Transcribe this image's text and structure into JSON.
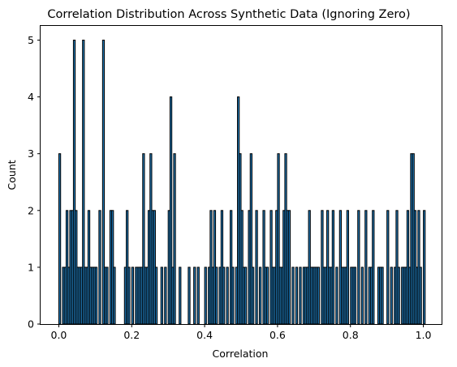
{
  "chart_data": {
    "type": "bar",
    "title": "Correlation Distribution Across Synthetic Data (Ignoring Zero)",
    "xlabel": "Correlation",
    "ylabel": "Count",
    "xlim": [
      -0.05,
      1.05
    ],
    "ylim": [
      0,
      5.25
    ],
    "xticks": [
      0.0,
      0.2,
      0.4,
      0.6,
      0.8,
      1.0
    ],
    "xtick_labels": [
      "0.0",
      "0.2",
      "0.4",
      "0.6",
      "0.8",
      "1.0"
    ],
    "yticks": [
      0,
      1,
      2,
      3,
      4,
      5
    ],
    "ytick_labels": [
      "0",
      "1",
      "2",
      "3",
      "4",
      "5"
    ],
    "bin_width": 0.005,
    "bar_color": "#1f77b4",
    "edge_color": "#000000",
    "bins": [
      [
        0.0,
        3
      ],
      [
        0.01,
        1
      ],
      [
        0.015,
        1
      ],
      [
        0.02,
        2
      ],
      [
        0.025,
        1
      ],
      [
        0.03,
        2
      ],
      [
        0.035,
        2
      ],
      [
        0.04,
        5
      ],
      [
        0.045,
        2
      ],
      [
        0.05,
        1
      ],
      [
        0.055,
        1
      ],
      [
        0.06,
        1
      ],
      [
        0.065,
        5
      ],
      [
        0.07,
        1
      ],
      [
        0.075,
        1
      ],
      [
        0.08,
        2
      ],
      [
        0.085,
        1
      ],
      [
        0.09,
        1
      ],
      [
        0.095,
        1
      ],
      [
        0.1,
        1
      ],
      [
        0.11,
        2
      ],
      [
        0.12,
        5
      ],
      [
        0.125,
        1
      ],
      [
        0.13,
        1
      ],
      [
        0.14,
        2
      ],
      [
        0.145,
        2
      ],
      [
        0.15,
        1
      ],
      [
        0.18,
        1
      ],
      [
        0.185,
        2
      ],
      [
        0.19,
        1
      ],
      [
        0.2,
        1
      ],
      [
        0.21,
        1
      ],
      [
        0.215,
        1
      ],
      [
        0.22,
        1
      ],
      [
        0.225,
        1
      ],
      [
        0.23,
        3
      ],
      [
        0.235,
        1
      ],
      [
        0.24,
        1
      ],
      [
        0.245,
        2
      ],
      [
        0.25,
        3
      ],
      [
        0.255,
        2
      ],
      [
        0.26,
        2
      ],
      [
        0.265,
        1
      ],
      [
        0.28,
        1
      ],
      [
        0.29,
        1
      ],
      [
        0.3,
        2
      ],
      [
        0.305,
        4
      ],
      [
        0.31,
        1
      ],
      [
        0.315,
        3
      ],
      [
        0.33,
        1
      ],
      [
        0.355,
        1
      ],
      [
        0.37,
        1
      ],
      [
        0.38,
        1
      ],
      [
        0.4,
        1
      ],
      [
        0.41,
        1
      ],
      [
        0.415,
        2
      ],
      [
        0.42,
        1
      ],
      [
        0.425,
        2
      ],
      [
        0.43,
        1
      ],
      [
        0.44,
        1
      ],
      [
        0.445,
        2
      ],
      [
        0.45,
        1
      ],
      [
        0.46,
        1
      ],
      [
        0.47,
        2
      ],
      [
        0.475,
        1
      ],
      [
        0.485,
        1
      ],
      [
        0.49,
        4
      ],
      [
        0.495,
        3
      ],
      [
        0.5,
        2
      ],
      [
        0.505,
        1
      ],
      [
        0.51,
        1
      ],
      [
        0.52,
        2
      ],
      [
        0.525,
        3
      ],
      [
        0.53,
        1
      ],
      [
        0.54,
        2
      ],
      [
        0.55,
        1
      ],
      [
        0.56,
        2
      ],
      [
        0.565,
        1
      ],
      [
        0.57,
        1
      ],
      [
        0.58,
        2
      ],
      [
        0.585,
        1
      ],
      [
        0.59,
        1
      ],
      [
        0.595,
        2
      ],
      [
        0.6,
        3
      ],
      [
        0.605,
        1
      ],
      [
        0.61,
        1
      ],
      [
        0.615,
        2
      ],
      [
        0.62,
        3
      ],
      [
        0.625,
        2
      ],
      [
        0.63,
        2
      ],
      [
        0.64,
        1
      ],
      [
        0.65,
        1
      ],
      [
        0.66,
        1
      ],
      [
        0.67,
        1
      ],
      [
        0.675,
        1
      ],
      [
        0.68,
        1
      ],
      [
        0.685,
        2
      ],
      [
        0.69,
        1
      ],
      [
        0.695,
        1
      ],
      [
        0.7,
        1
      ],
      [
        0.705,
        1
      ],
      [
        0.71,
        1
      ],
      [
        0.72,
        2
      ],
      [
        0.725,
        1
      ],
      [
        0.73,
        1
      ],
      [
        0.735,
        2
      ],
      [
        0.74,
        1
      ],
      [
        0.745,
        1
      ],
      [
        0.75,
        2
      ],
      [
        0.76,
        1
      ],
      [
        0.77,
        2
      ],
      [
        0.775,
        1
      ],
      [
        0.78,
        1
      ],
      [
        0.785,
        1
      ],
      [
        0.79,
        2
      ],
      [
        0.8,
        1
      ],
      [
        0.805,
        1
      ],
      [
        0.81,
        1
      ],
      [
        0.82,
        2
      ],
      [
        0.83,
        1
      ],
      [
        0.84,
        2
      ],
      [
        0.85,
        1
      ],
      [
        0.855,
        1
      ],
      [
        0.86,
        2
      ],
      [
        0.875,
        1
      ],
      [
        0.88,
        1
      ],
      [
        0.885,
        1
      ],
      [
        0.9,
        2
      ],
      [
        0.91,
        1
      ],
      [
        0.92,
        1
      ],
      [
        0.925,
        2
      ],
      [
        0.93,
        1
      ],
      [
        0.94,
        1
      ],
      [
        0.945,
        1
      ],
      [
        0.95,
        1
      ],
      [
        0.955,
        2
      ],
      [
        0.96,
        1
      ],
      [
        0.965,
        3
      ],
      [
        0.97,
        3
      ],
      [
        0.975,
        2
      ],
      [
        0.98,
        1
      ],
      [
        0.985,
        2
      ],
      [
        0.99,
        1
      ],
      [
        1.0,
        2
      ]
    ]
  }
}
